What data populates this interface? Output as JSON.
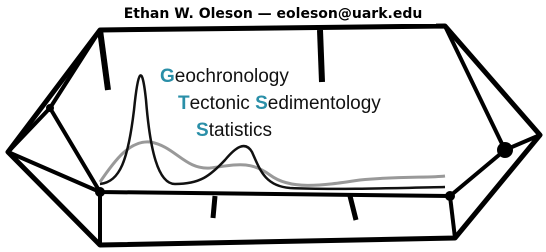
{
  "header": {
    "text": "Ethan W. Oleson — eoleson@uark.edu"
  },
  "lines": [
    {
      "parts": [
        {
          "initial": "G",
          "rest": "eochronology"
        }
      ]
    },
    {
      "parts": [
        {
          "initial": "T",
          "rest": "ectonic "
        },
        {
          "initial": "S",
          "rest": "edimentology"
        }
      ]
    },
    {
      "parts": [
        {
          "initial": "S",
          "rest": "tatistics"
        }
      ]
    }
  ]
}
